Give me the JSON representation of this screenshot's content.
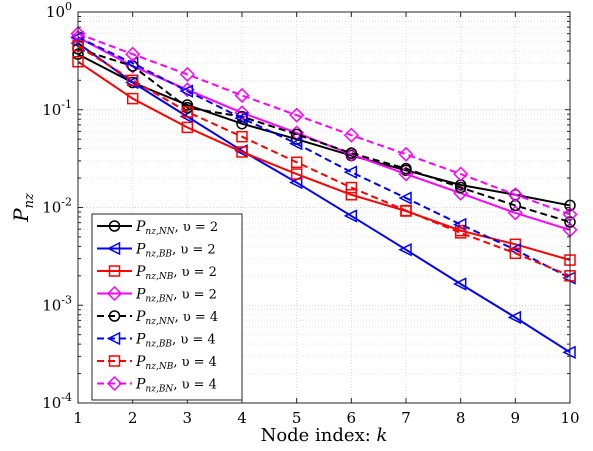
{
  "chart_data": {
    "type": "line",
    "xlabel": "Node index: k",
    "ylabel": "P_nz",
    "y_scale": "log",
    "xlim": [
      1,
      10
    ],
    "ylim": [
      0.0001,
      1
    ],
    "grid": true,
    "legend_position": "bottom-left",
    "x": [
      1,
      2,
      3,
      4,
      5,
      6,
      7,
      8,
      9,
      10
    ],
    "x_tick_labels": [
      "1",
      "2",
      "3",
      "4",
      "5",
      "6",
      "7",
      "8",
      "9",
      "10"
    ],
    "y_ticks": [
      0.0001,
      0.001,
      0.01,
      0.1,
      1
    ],
    "y_tick_labels": [
      {
        "base": "10",
        "exp": "-4"
      },
      {
        "base": "10",
        "exp": "-3"
      },
      {
        "base": "10",
        "exp": "-2"
      },
      {
        "base": "10",
        "exp": "-1"
      },
      {
        "base": "10",
        "exp": "0"
      }
    ],
    "series": [
      {
        "name": "P_nz,NN, υ = 2",
        "sub": "nz,NN",
        "eq": ", υ = 2",
        "color": "#000000",
        "dashed": false,
        "marker": "circle",
        "values": [
          0.37,
          0.19,
          0.112,
          0.072,
          0.05,
          0.034,
          0.024,
          0.017,
          0.0135,
          0.0105
        ]
      },
      {
        "name": "P_nz,BB, υ = 2",
        "sub": "nz,BB",
        "eq": ", υ = 2",
        "color": "#0000ff",
        "dashed": false,
        "marker": "triangle-left",
        "values": [
          0.48,
          0.19,
          0.085,
          0.038,
          0.018,
          0.0082,
          0.0037,
          0.00165,
          0.00075,
          0.00033
        ]
      },
      {
        "name": "P_nz,NB, υ = 2",
        "sub": "nz,NB",
        "eq": ", υ = 2",
        "color": "#ff0000",
        "dashed": false,
        "marker": "square",
        "values": [
          0.31,
          0.13,
          0.066,
          0.037,
          0.022,
          0.0135,
          0.0092,
          0.0058,
          0.0042,
          0.0029
        ]
      },
      {
        "name": "P_nz,BN, υ = 2",
        "sub": "nz,BN",
        "eq": ", υ = 2",
        "color": "#ff00ff",
        "dashed": false,
        "marker": "diamond",
        "values": [
          0.55,
          0.28,
          0.16,
          0.093,
          0.058,
          0.035,
          0.022,
          0.014,
          0.0088,
          0.0059
        ]
      },
      {
        "name": "P_nz,NN, υ = 4",
        "sub": "nz,NN",
        "eq": ", υ = 4",
        "color": "#000000",
        "dashed": true,
        "marker": "circle",
        "values": [
          0.42,
          0.28,
          0.105,
          0.085,
          0.056,
          0.036,
          0.025,
          0.016,
          0.0105,
          0.0071
        ]
      },
      {
        "name": "P_nz,BB, υ = 4",
        "sub": "nz,BB",
        "eq": ", υ = 4",
        "color": "#0000ff",
        "dashed": true,
        "marker": "triangle-left",
        "values": [
          0.55,
          0.3,
          0.155,
          0.082,
          0.045,
          0.023,
          0.0125,
          0.0067,
          0.0037,
          0.0019
        ]
      },
      {
        "name": "P_nz,NB, υ = 4",
        "sub": "nz,NB",
        "eq": ", υ = 4",
        "color": "#ff0000",
        "dashed": true,
        "marker": "square",
        "values": [
          0.45,
          0.2,
          0.095,
          0.053,
          0.029,
          0.016,
          0.0093,
          0.0055,
          0.0034,
          0.002
        ]
      },
      {
        "name": "P_nz,BN, υ = 4",
        "sub": "nz,BN",
        "eq": ", υ = 4",
        "color": "#ff00ff",
        "dashed": true,
        "marker": "diamond",
        "values": [
          0.6,
          0.37,
          0.23,
          0.14,
          0.088,
          0.055,
          0.035,
          0.022,
          0.0135,
          0.0085
        ]
      }
    ]
  }
}
